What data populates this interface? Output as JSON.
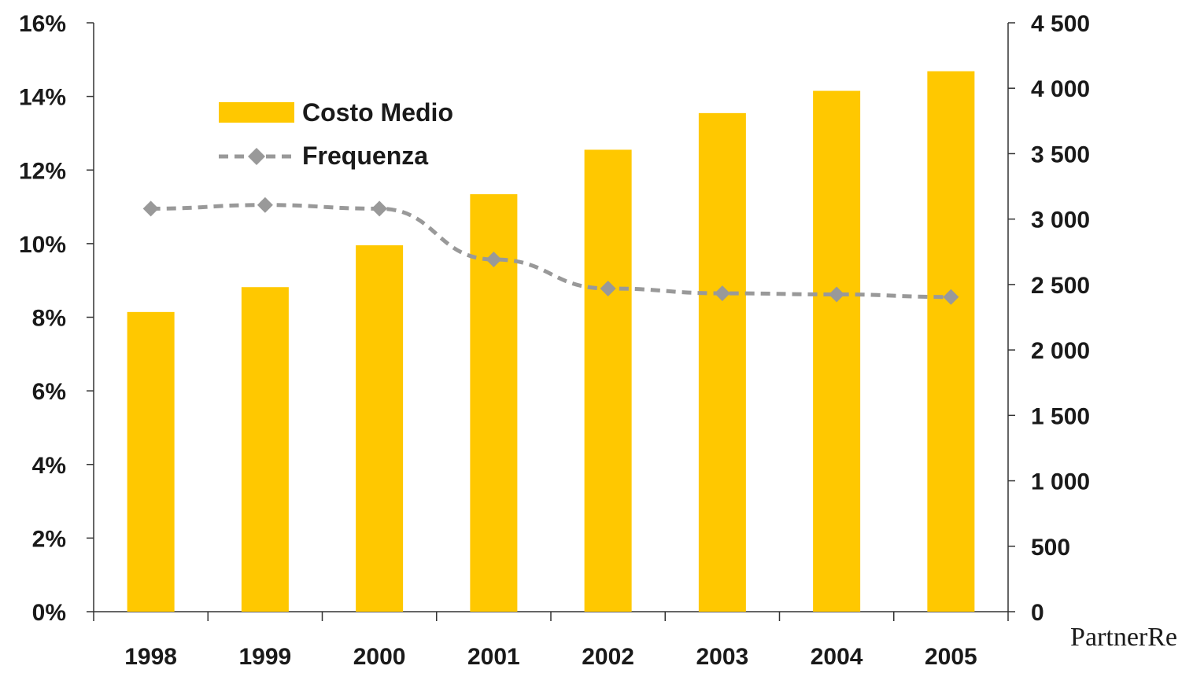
{
  "brand": "PartnerRe",
  "colors": {
    "bar": "#FFC800",
    "line": "#999999",
    "axis": "#333333",
    "text": "#1a1a1a"
  },
  "chart_data": {
    "type": "bar",
    "categories": [
      "1998",
      "1999",
      "2000",
      "2001",
      "2002",
      "2003",
      "2004",
      "2005"
    ],
    "series": [
      {
        "name": "Costo Medio",
        "type": "bar",
        "axis": "right",
        "values": [
          2290,
          2480,
          2800,
          3190,
          3530,
          3810,
          3980,
          4130
        ]
      },
      {
        "name": "Frequenza",
        "type": "line",
        "style": "dashed",
        "marker": "diamond",
        "axis": "left",
        "values": [
          0.1095,
          0.1105,
          0.1095,
          0.0957,
          0.0878,
          0.0865,
          0.0862,
          0.0855
        ]
      }
    ],
    "y_left": {
      "ylim": [
        0,
        0.16
      ],
      "ticks": [
        "0%",
        "2%",
        "4%",
        "6%",
        "8%",
        "10%",
        "12%",
        "14%",
        "16%"
      ]
    },
    "y_right": {
      "ylim": [
        0,
        4500
      ],
      "ticks": [
        "0",
        "500",
        "1 000",
        "1 500",
        "2 000",
        "2 500",
        "3 000",
        "3 500",
        "4 000",
        "4 500"
      ]
    },
    "legend": {
      "placement": "top-left",
      "entries": [
        "Costo Medio",
        "Frequenza"
      ]
    },
    "grid": false,
    "title": "",
    "xlabel": "",
    "ylabel": ""
  }
}
